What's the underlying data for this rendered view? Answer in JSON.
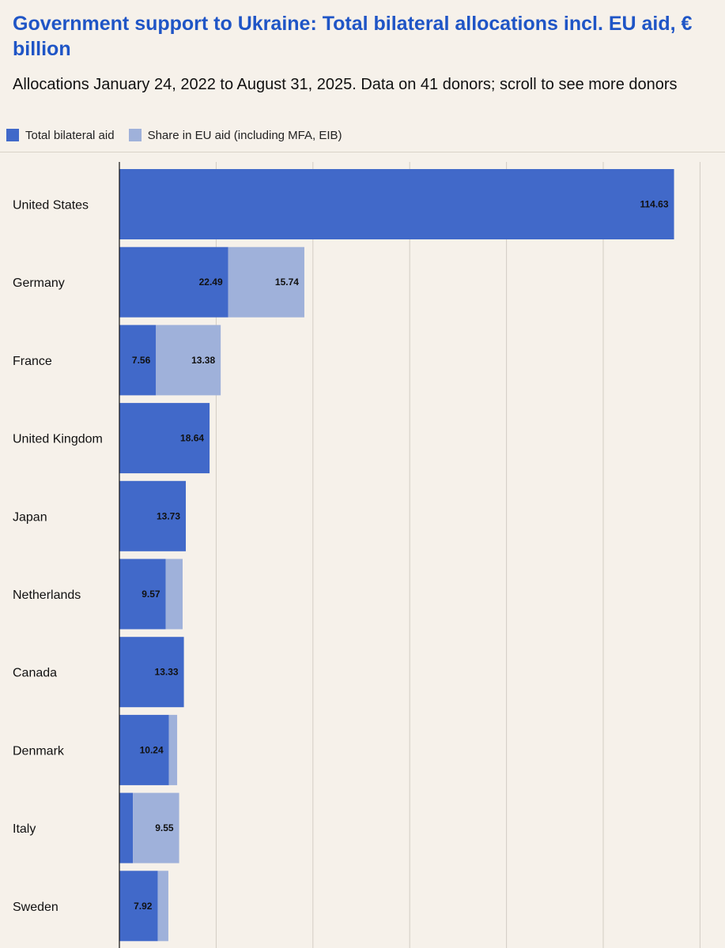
{
  "header": {
    "title": "Government support to Ukraine: Total bilateral allocations incl. EU aid, € billion",
    "subtitle": "Allocations January 24, 2022 to August 31, 2025. Data on 41 donors; scroll to see more donors"
  },
  "legend": {
    "items": [
      {
        "label": "Total bilateral aid",
        "color": "#4169c9"
      },
      {
        "label": "Share in EU aid (including MFA, EIB)",
        "color": "#9fb1da"
      }
    ]
  },
  "chart_data": {
    "type": "bar",
    "orientation": "horizontal",
    "stacked": true,
    "title": "Government support to Ukraine: Total bilateral allocations incl. EU aid, € billion",
    "xlim": [
      0,
      120
    ],
    "grid": true,
    "legend_position": "top-left",
    "categories": [
      "United States",
      "Germany",
      "France",
      "United Kingdom",
      "Japan",
      "Netherlands",
      "Canada",
      "Denmark",
      "Italy",
      "Sweden"
    ],
    "series": [
      {
        "name": "Total bilateral aid",
        "color": "#4169c9",
        "values": [
          114.63,
          22.49,
          7.56,
          18.64,
          13.73,
          9.57,
          13.33,
          10.24,
          2.8,
          7.92
        ],
        "labels": [
          "114.63",
          "22.49",
          "7.56",
          "18.64",
          "13.73",
          "9.57",
          "13.33",
          "10.24",
          "",
          "7.92"
        ]
      },
      {
        "name": "Share in EU aid (including MFA, EIB)",
        "color": "#9fb1da",
        "values": [
          0,
          15.74,
          13.38,
          0,
          0,
          3.5,
          0,
          1.7,
          9.55,
          2.2
        ],
        "labels": [
          "",
          "15.74",
          "13.38",
          "",
          "",
          "",
          "",
          "",
          "9.55",
          ""
        ]
      }
    ]
  }
}
